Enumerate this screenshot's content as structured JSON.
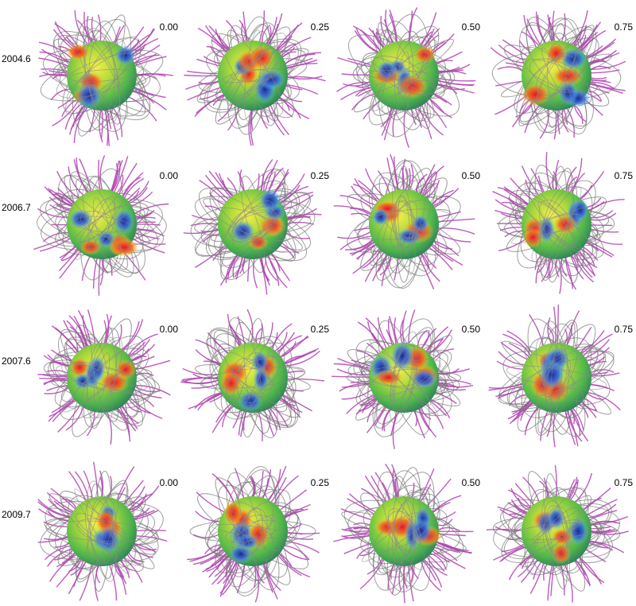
{
  "rows": [
    {
      "epoch": "2004.6",
      "phases": [
        "0.00",
        "0.25",
        "0.50",
        "0.75"
      ]
    },
    {
      "epoch": "2006.7",
      "phases": [
        "0.00",
        "0.25",
        "0.50",
        "0.75"
      ]
    },
    {
      "epoch": "2007.6",
      "phases": [
        "0.00",
        "0.25",
        "0.50",
        "0.75"
      ]
    },
    {
      "epoch": "2009.7",
      "phases": [
        "0.00",
        "0.25",
        "0.50",
        "0.75"
      ]
    }
  ]
}
